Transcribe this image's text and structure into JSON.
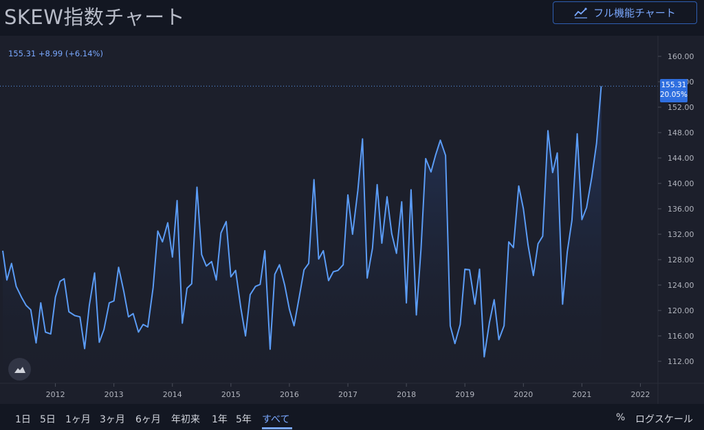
{
  "header": {
    "title": "SKEW指数チャート",
    "full_chart_label": "フル機能チャート",
    "full_chart_icon": "chart-line-icon"
  },
  "readout": {
    "price": "155.31",
    "change": "+8.99",
    "change_pct": "(+6.14%)"
  },
  "last_price_tag": {
    "price": "155.31",
    "pct": "20.05%"
  },
  "colors": {
    "background": "#131722",
    "panel": "#1c1f2b",
    "line": "#5b9cf6",
    "accent": "#2f6fe0",
    "text": "#d1d4dc"
  },
  "chart_data": {
    "type": "area",
    "title": "",
    "xlabel": "",
    "ylabel": "",
    "ylim": [
      110,
      162
    ],
    "y_ticks": [
      "112.00",
      "116.00",
      "120.00",
      "124.00",
      "128.00",
      "132.00",
      "136.00",
      "140.00",
      "144.00",
      "148.00",
      "152.00",
      "156.00",
      "160.00"
    ],
    "x_ticks": [
      {
        "label": "2012",
        "year": 2012
      },
      {
        "label": "2013",
        "year": 2013
      },
      {
        "label": "2014",
        "year": 2014
      },
      {
        "label": "2015",
        "year": 2015
      },
      {
        "label": "2016",
        "year": 2016
      },
      {
        "label": "2017",
        "year": 2017
      },
      {
        "label": "2018",
        "year": 2018
      },
      {
        "label": "2019",
        "year": 2019
      },
      {
        "label": "2020",
        "year": 2020
      },
      {
        "label": "2021",
        "year": 2021
      },
      {
        "label": "2022",
        "year": 2022
      }
    ],
    "x_range": [
      2011.1,
      2022.3
    ],
    "last_value": 155.31,
    "points": [
      [
        2011.1,
        129.4
      ],
      [
        2011.17,
        124.8
      ],
      [
        2011.25,
        127.4
      ],
      [
        2011.33,
        123.8
      ],
      [
        2011.42,
        122.1
      ],
      [
        2011.5,
        120.8
      ],
      [
        2011.58,
        120.1
      ],
      [
        2011.67,
        114.9
      ],
      [
        2011.75,
        121.2
      ],
      [
        2011.83,
        116.6
      ],
      [
        2011.92,
        116.3
      ],
      [
        2012.0,
        122.1
      ],
      [
        2012.08,
        124.6
      ],
      [
        2012.15,
        125.0
      ],
      [
        2012.23,
        119.8
      ],
      [
        2012.33,
        119.2
      ],
      [
        2012.42,
        119.0
      ],
      [
        2012.5,
        114.0
      ],
      [
        2012.58,
        120.8
      ],
      [
        2012.67,
        125.9
      ],
      [
        2012.75,
        115.0
      ],
      [
        2012.83,
        117.0
      ],
      [
        2012.92,
        121.2
      ],
      [
        2013.0,
        121.5
      ],
      [
        2013.08,
        126.8
      ],
      [
        2013.17,
        123.0
      ],
      [
        2013.25,
        119.0
      ],
      [
        2013.33,
        119.5
      ],
      [
        2013.42,
        116.6
      ],
      [
        2013.5,
        117.8
      ],
      [
        2013.58,
        117.4
      ],
      [
        2013.67,
        123.6
      ],
      [
        2013.75,
        132.5
      ],
      [
        2013.83,
        130.8
      ],
      [
        2013.92,
        133.8
      ],
      [
        2014.0,
        128.4
      ],
      [
        2014.08,
        137.3
      ],
      [
        2014.17,
        118.0
      ],
      [
        2014.25,
        123.5
      ],
      [
        2014.33,
        124.2
      ],
      [
        2014.42,
        139.4
      ],
      [
        2014.5,
        128.8
      ],
      [
        2014.58,
        127.0
      ],
      [
        2014.67,
        127.7
      ],
      [
        2014.75,
        124.8
      ],
      [
        2014.83,
        132.2
      ],
      [
        2014.92,
        134.0
      ],
      [
        2015.0,
        125.3
      ],
      [
        2015.08,
        126.3
      ],
      [
        2015.17,
        120.4
      ],
      [
        2015.25,
        116.0
      ],
      [
        2015.33,
        122.5
      ],
      [
        2015.42,
        123.8
      ],
      [
        2015.5,
        124.1
      ],
      [
        2015.58,
        129.4
      ],
      [
        2015.67,
        113.9
      ],
      [
        2015.75,
        125.7
      ],
      [
        2015.83,
        127.2
      ],
      [
        2015.92,
        124.0
      ],
      [
        2016.0,
        120.2
      ],
      [
        2016.08,
        117.6
      ],
      [
        2016.17,
        122.2
      ],
      [
        2016.25,
        126.4
      ],
      [
        2016.33,
        127.4
      ],
      [
        2016.42,
        140.6
      ],
      [
        2016.5,
        128.1
      ],
      [
        2016.58,
        129.4
      ],
      [
        2016.67,
        124.7
      ],
      [
        2016.75,
        126.1
      ],
      [
        2016.83,
        126.3
      ],
      [
        2016.92,
        127.2
      ],
      [
        2017.0,
        138.2
      ],
      [
        2017.08,
        132.0
      ],
      [
        2017.17,
        138.9
      ],
      [
        2017.25,
        147.0
      ],
      [
        2017.33,
        125.1
      ],
      [
        2017.42,
        129.8
      ],
      [
        2017.5,
        139.8
      ],
      [
        2017.58,
        130.6
      ],
      [
        2017.67,
        137.9
      ],
      [
        2017.75,
        132.1
      ],
      [
        2017.83,
        129.0
      ],
      [
        2017.92,
        137.1
      ],
      [
        2018.0,
        121.2
      ],
      [
        2018.08,
        139.0
      ],
      [
        2018.17,
        119.3
      ],
      [
        2018.25,
        129.7
      ],
      [
        2018.33,
        143.9
      ],
      [
        2018.42,
        141.8
      ],
      [
        2018.5,
        144.5
      ],
      [
        2018.58,
        146.8
      ],
      [
        2018.67,
        144.4
      ],
      [
        2018.75,
        117.6
      ],
      [
        2018.83,
        114.8
      ],
      [
        2018.92,
        117.8
      ],
      [
        2019.0,
        126.5
      ],
      [
        2019.08,
        126.4
      ],
      [
        2019.17,
        121.0
      ],
      [
        2019.25,
        126.5
      ],
      [
        2019.33,
        112.7
      ],
      [
        2019.42,
        118.1
      ],
      [
        2019.5,
        121.7
      ],
      [
        2019.58,
        115.4
      ],
      [
        2019.67,
        117.6
      ],
      [
        2019.75,
        130.8
      ],
      [
        2019.83,
        129.9
      ],
      [
        2019.92,
        139.6
      ],
      [
        2020.0,
        136.0
      ],
      [
        2020.08,
        130.3
      ],
      [
        2020.17,
        125.5
      ],
      [
        2020.25,
        130.5
      ],
      [
        2020.33,
        131.7
      ],
      [
        2020.42,
        148.3
      ],
      [
        2020.5,
        141.7
      ],
      [
        2020.58,
        144.8
      ],
      [
        2020.67,
        121.0
      ],
      [
        2020.75,
        129.2
      ],
      [
        2020.83,
        134.2
      ],
      [
        2020.92,
        147.8
      ],
      [
        2021.0,
        134.3
      ],
      [
        2021.08,
        136.2
      ],
      [
        2021.17,
        141.0
      ],
      [
        2021.25,
        146.3
      ],
      [
        2021.33,
        155.31
      ]
    ]
  },
  "range_buttons": [
    {
      "label": "1日"
    },
    {
      "label": "5日"
    },
    {
      "label": "1ヶ月"
    },
    {
      "label": "3ヶ月"
    },
    {
      "label": "6ヶ月"
    },
    {
      "label": "年初来"
    },
    {
      "label": "1年"
    },
    {
      "label": "5年"
    },
    {
      "label": "すべて",
      "active": true
    }
  ],
  "controls": {
    "percent": "%",
    "log_scale": "ログスケール"
  }
}
